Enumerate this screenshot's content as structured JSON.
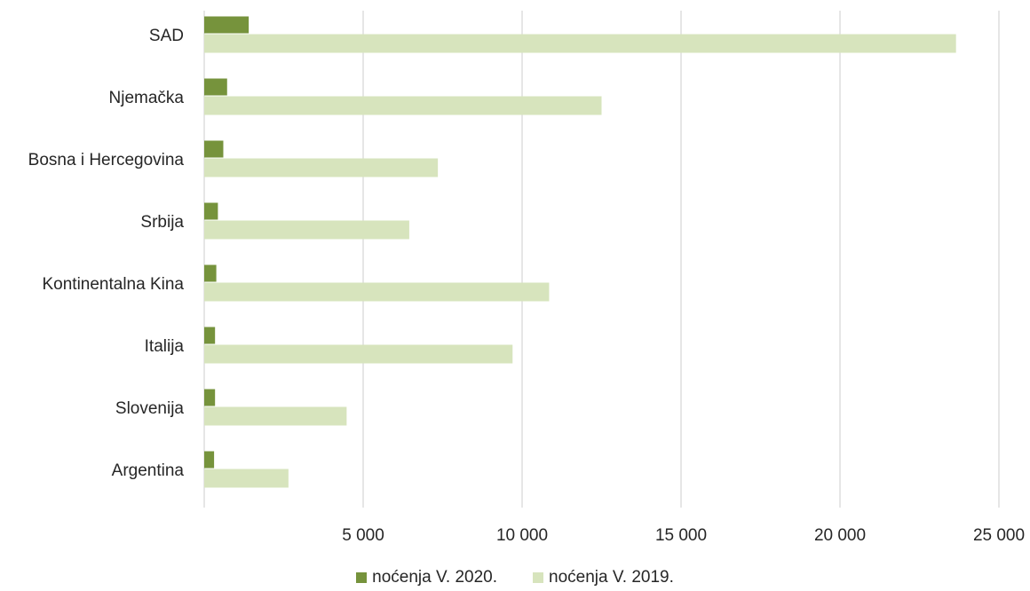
{
  "chart_data": {
    "type": "bar",
    "orientation": "horizontal",
    "categories": [
      "SAD",
      "Njemačka",
      "Bosna i Hercegovina",
      "Srbija",
      "Kontinentalna Kina",
      "Italija",
      "Slovenija",
      "Argentina"
    ],
    "series": [
      {
        "name": "noćenja V. 2020.",
        "color": "#76933c",
        "values": [
          1400,
          720,
          600,
          430,
          380,
          340,
          340,
          310
        ]
      },
      {
        "name": "noćenja V. 2019.",
        "color": "#d7e4bd",
        "values": [
          23650,
          12500,
          7350,
          6450,
          10850,
          9700,
          4480,
          2650
        ]
      }
    ],
    "xlim": [
      0,
      25000
    ],
    "xticks": [
      5000,
      10000,
      15000,
      20000,
      25000
    ],
    "xtick_labels": [
      "5 000",
      "10 000",
      "15 000",
      "20 000",
      "25 000"
    ],
    "grid": true,
    "legend_position": "bottom"
  }
}
